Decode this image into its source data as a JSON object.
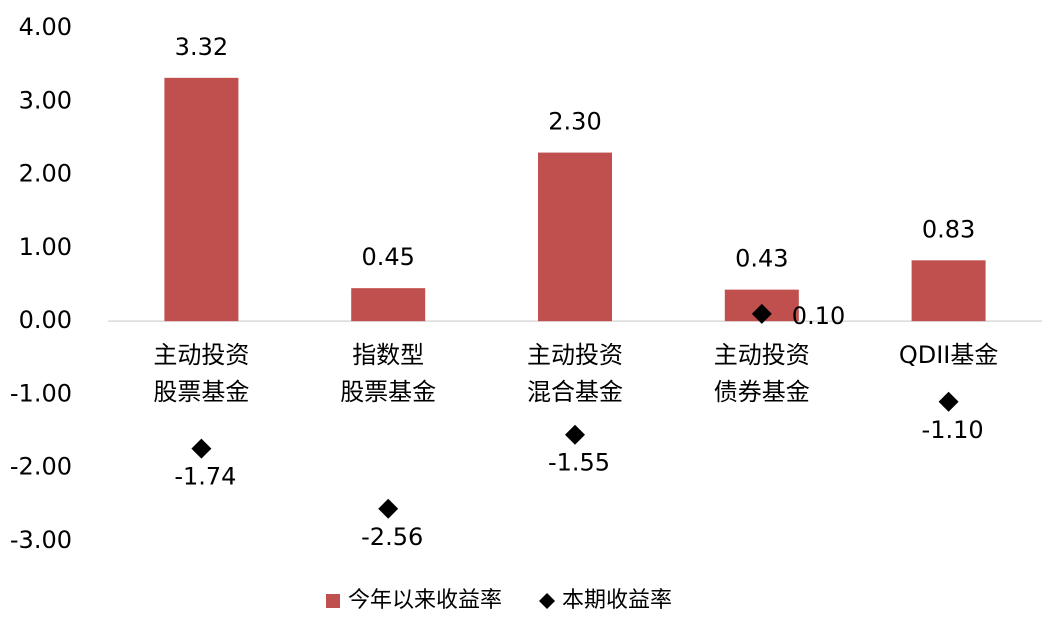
{
  "chart_data": {
    "type": "bar",
    "categories": [
      [
        "主动投资",
        "股票基金"
      ],
      [
        "指数型",
        "股票基金"
      ],
      [
        "主动投资",
        "混合基金"
      ],
      [
        "主动投资",
        "债券基金"
      ],
      [
        "QDII基金"
      ]
    ],
    "series": [
      {
        "name": "今年以来收益率",
        "type": "bar",
        "color": "#c0504d",
        "values": [
          3.32,
          0.45,
          2.3,
          0.43,
          0.83
        ],
        "value_labels": [
          "3.32",
          "0.45",
          "2.30",
          "0.43",
          "0.83"
        ]
      },
      {
        "name": "本期收益率",
        "type": "diamond",
        "color": "#000000",
        "values": [
          -1.74,
          -2.56,
          -1.55,
          0.1,
          -1.1
        ],
        "value_labels": [
          "-1.74",
          "-2.56",
          "-1.55",
          "0.10",
          "-1.10"
        ]
      }
    ],
    "ylim": [
      -3,
      4
    ],
    "yticks": [
      {
        "value": -3,
        "label": "-3.00"
      },
      {
        "value": -2,
        "label": "-2.00"
      },
      {
        "value": -1,
        "label": "-1.00"
      },
      {
        "value": 0,
        "label": "0.00"
      },
      {
        "value": 1,
        "label": "1.00"
      },
      {
        "value": 2,
        "label": "2.00"
      },
      {
        "value": 3,
        "label": "3.00"
      },
      {
        "value": 4,
        "label": "4.00"
      }
    ],
    "legend": "bottom"
  }
}
